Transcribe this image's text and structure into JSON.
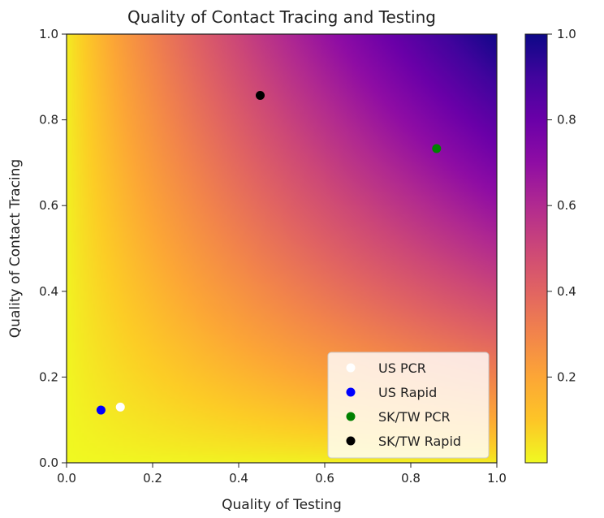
{
  "chart_data": {
    "type": "heatmap",
    "title": "Quality of Contact Tracing and Testing",
    "xlabel": "Quality of Testing",
    "ylabel": "Quality of Contact Tracing",
    "xlim": [
      0.0,
      1.0
    ],
    "ylim": [
      0.0,
      1.0
    ],
    "xticks": [
      "0.0",
      "0.2",
      "0.4",
      "0.6",
      "0.8",
      "1.0"
    ],
    "yticks": [
      "0.0",
      "0.2",
      "0.4",
      "0.6",
      "0.8",
      "1.0"
    ],
    "colormap": "plasma_r",
    "colorbar": {
      "range": [
        0.0,
        1.0
      ],
      "ticks": [
        "0.2",
        "0.4",
        "0.6",
        "0.8",
        "1.0"
      ]
    },
    "grid": false,
    "legend_position": "lower-right",
    "series": [
      {
        "name": "US PCR",
        "color": "#ffffff",
        "x": 0.125,
        "y": 0.13
      },
      {
        "name": "US Rapid",
        "color": "#0000ff",
        "x": 0.08,
        "y": 0.123
      },
      {
        "name": "SK/TW PCR",
        "color": "#008000",
        "x": 0.86,
        "y": 0.733
      },
      {
        "name": "SK/TW Rapid",
        "color": "#000000",
        "x": 0.45,
        "y": 0.857
      }
    ]
  }
}
